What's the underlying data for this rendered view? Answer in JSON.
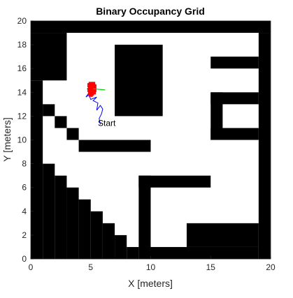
{
  "chart_data": {
    "type": "heatmap",
    "title": "Binary Occupancy Grid",
    "xlabel": "X [meters]",
    "ylabel": "Y [meters]",
    "xlim": [
      0,
      20
    ],
    "ylim": [
      0,
      20
    ],
    "xticks": [
      0,
      5,
      10,
      15,
      20
    ],
    "yticks": [
      0,
      2,
      4,
      6,
      8,
      10,
      12,
      14,
      16,
      18,
      20
    ],
    "grid": false,
    "colors": {
      "occupied": "#000000",
      "free": "#ffffff",
      "path": "#0000ff",
      "particles": "#ff0000",
      "heading": "#00cc00",
      "axis": "#262626"
    },
    "occupied_cells": [
      {
        "x0": 0,
        "y0": 19,
        "x1": 20,
        "y1": 20
      },
      {
        "x0": 0,
        "y0": 15,
        "x1": 3,
        "y1": 19
      },
      {
        "x0": 0,
        "y0": 0,
        "x1": 1,
        "y1": 15
      },
      {
        "x0": 19,
        "y0": 0,
        "x1": 20,
        "y1": 19
      },
      {
        "x0": 7,
        "y0": 12,
        "x1": 11,
        "y1": 18
      },
      {
        "x0": 15,
        "y0": 16,
        "x1": 19,
        "y1": 17
      },
      {
        "x0": 15,
        "y0": 10,
        "x1": 19,
        "y1": 11
      },
      {
        "x0": 15,
        "y0": 13,
        "x1": 19,
        "y1": 14
      },
      {
        "x0": 15,
        "y0": 10,
        "x1": 16,
        "y1": 14
      },
      {
        "x0": 1,
        "y0": 12,
        "x1": 2,
        "y1": 13
      },
      {
        "x0": 2,
        "y0": 11,
        "x1": 3,
        "y1": 12
      },
      {
        "x0": 3,
        "y0": 10,
        "x1": 4,
        "y1": 11
      },
      {
        "x0": 4,
        "y0": 9,
        "x1": 10,
        "y1": 10
      },
      {
        "x0": 1,
        "y0": 0,
        "x1": 2,
        "y1": 8
      },
      {
        "x0": 2,
        "y0": 0,
        "x1": 3,
        "y1": 7
      },
      {
        "x0": 3,
        "y0": 0,
        "x1": 4,
        "y1": 6
      },
      {
        "x0": 4,
        "y0": 0,
        "x1": 5,
        "y1": 5
      },
      {
        "x0": 5,
        "y0": 0,
        "x1": 6,
        "y1": 4
      },
      {
        "x0": 6,
        "y0": 0,
        "x1": 7,
        "y1": 3
      },
      {
        "x0": 7,
        "y0": 0,
        "x1": 8,
        "y1": 2
      },
      {
        "x0": 8,
        "y0": 0,
        "x1": 9,
        "y1": 1
      },
      {
        "x0": 9,
        "y0": 0,
        "x1": 10,
        "y1": 7
      },
      {
        "x0": 9,
        "y0": 6,
        "x1": 15,
        "y1": 7
      },
      {
        "x0": 10,
        "y0": 0,
        "x1": 19,
        "y1": 1
      },
      {
        "x0": 13,
        "y0": 1,
        "x1": 19,
        "y1": 3
      }
    ],
    "path": {
      "x": [
        5.8,
        5.7,
        5.9,
        6.0,
        5.8,
        5.5,
        5.6,
        5.2,
        5.5,
        5.0,
        4.8,
        4.6,
        5.1,
        4.7,
        5.0,
        4.8,
        5.2,
        5.0
      ],
      "y": [
        11.3,
        11.8,
        12.2,
        12.6,
        12.9,
        12.5,
        13.1,
        13.3,
        13.6,
        13.4,
        13.9,
        13.6,
        14.0,
        14.3,
        14.1,
        14.5,
        14.2,
        14.6
      ]
    },
    "particles": {
      "x": [
        4.9,
        5.0,
        5.1,
        5.2,
        5.3,
        4.95,
        5.05,
        5.15,
        5.25,
        4.9,
        5.0,
        5.1,
        5.2,
        5.0,
        5.1,
        5.3,
        5.2,
        4.95,
        5.05,
        5.15
      ],
      "y": [
        14.2,
        14.4,
        14.6,
        14.3,
        14.5,
        14.0,
        14.1,
        14.2,
        14.0,
        14.6,
        14.7,
        13.9,
        14.7,
        13.8,
        14.4,
        14.2,
        14.5,
        14.5,
        14.3,
        14.1
      ]
    },
    "heading": {
      "x": [
        5.2,
        6.2
      ],
      "y": [
        14.3,
        14.2
      ]
    },
    "start_annotation": {
      "text": "Start",
      "x": 5.6,
      "y": 11.4
    }
  }
}
